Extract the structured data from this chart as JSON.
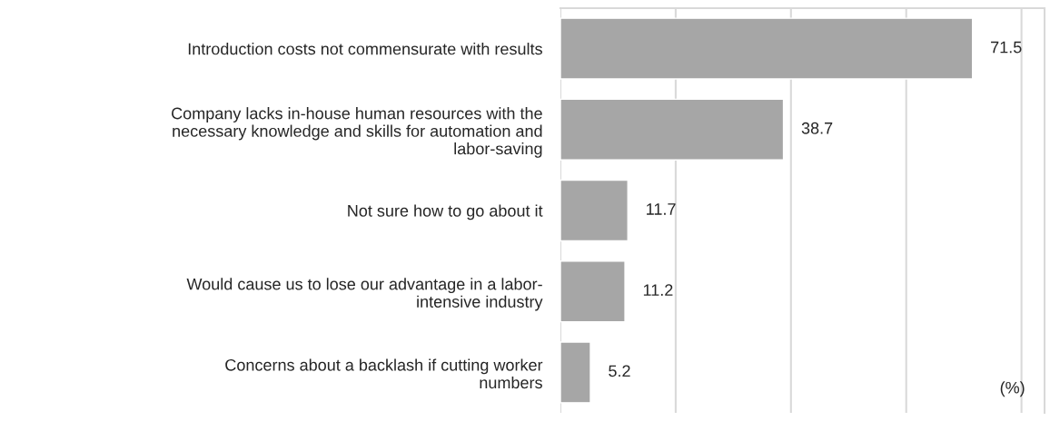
{
  "chart_data": {
    "type": "bar",
    "orientation": "horizontal",
    "categories": [
      "Introduction costs not commensurate with results",
      "Company lacks in-house human resources with the\nnecessary knowledge and skills for automation and\nlabor-saving",
      "Not sure how to go about it",
      "Would cause us to lose our advantage in a labor-\nintensive industry",
      "Concerns about a backlash if cutting worker\nnumbers"
    ],
    "values": [
      71.5,
      38.7,
      11.7,
      11.2,
      5.2
    ],
    "color": "#a6a6a6",
    "data_labels": true,
    "xlim": [
      0,
      84
    ],
    "xticks": [
      {
        "value": 0,
        "label": null
      },
      {
        "value": 20,
        "label": null
      },
      {
        "value": 40,
        "label": null
      },
      {
        "value": 60,
        "label": null
      },
      {
        "value": 80,
        "label": null
      }
    ],
    "grid": "x",
    "tick_labels": "y",
    "annotations": [
      "(%)"
    ]
  }
}
